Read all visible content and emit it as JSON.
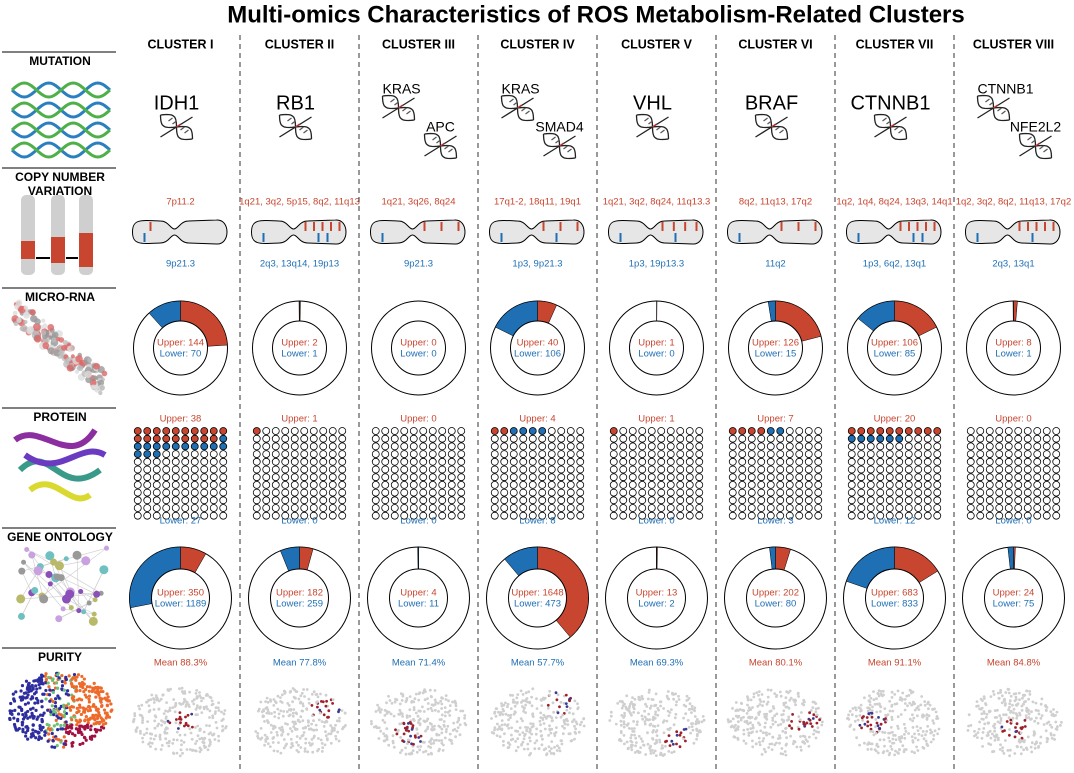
{
  "title": "Multi-omics Characteristics of ROS Metabolism-Related Clusters",
  "row_labels": [
    [
      "MUTATION"
    ],
    [
      "COPY NUMBER",
      "VARIATION"
    ],
    [
      "MICRO-RNA"
    ],
    [
      "PROTEIN"
    ],
    [
      "GENE ONTOLOGY"
    ],
    [
      "PURITY"
    ]
  ],
  "upper_color": "#c8452f",
  "lower_color": "#1f6fb5",
  "clusters": [
    {
      "name": "CLUSTER I",
      "mutation": [
        "IDH1"
      ],
      "cnv_upper": "7p11.2",
      "cnv_lower": "9p21.3",
      "mirna": {
        "values": [
          144,
          70
        ],
        "value_labels": [
          "Upper: 144",
          "Lower: 70"
        ]
      },
      "protein": {
        "values": [
          38,
          27
        ],
        "value_labels": [
          "Upper: 38",
          "Lower: 27"
        ]
      },
      "go": {
        "values": [
          350,
          1189
        ],
        "value_labels": [
          "Upper: 350",
          "Lower: 1189"
        ]
      },
      "purity": {
        "label": "Mean 88.3%",
        "color": "#c8452f"
      }
    },
    {
      "name": "CLUSTER II",
      "mutation": [
        "RB1"
      ],
      "cnv_upper": "1q21, 3q2, 5p15, 8q2, 11q13",
      "cnv_lower": "2q3, 13q14, 19p13",
      "mirna": {
        "values": [
          2,
          1
        ],
        "value_labels": [
          "Upper: 2",
          "Lower: 1"
        ]
      },
      "protein": {
        "values": [
          1,
          0
        ],
        "value_labels": [
          "Upper: 1",
          "Lower: 0"
        ]
      },
      "go": {
        "values": [
          182,
          259
        ],
        "value_labels": [
          "Upper: 182",
          "Lower: 259"
        ]
      },
      "purity": {
        "label": "Mean 77.8%",
        "color": "#1f6fb5"
      }
    },
    {
      "name": "CLUSTER III",
      "mutation": [
        "KRAS",
        "APC"
      ],
      "cnv_upper": "1q21, 3q26, 8q24",
      "cnv_lower": "9p21.3",
      "mirna": {
        "values": [
          0,
          0
        ],
        "value_labels": [
          "Upper: 0",
          "Lower: 0"
        ]
      },
      "protein": {
        "values": [
          0,
          0
        ],
        "value_labels": [
          "Upper: 0",
          "Lower: 0"
        ]
      },
      "go": {
        "values": [
          4,
          11
        ],
        "value_labels": [
          "Upper: 4",
          "Lower: 11"
        ]
      },
      "purity": {
        "label": "Mean 71.4%",
        "color": "#1f6fb5"
      }
    },
    {
      "name": "CLUSTER IV",
      "mutation": [
        "KRAS",
        "SMAD4"
      ],
      "cnv_upper": "17q1-2, 18q11, 19q1",
      "cnv_lower": "1p3, 9p21.3",
      "mirna": {
        "values": [
          40,
          106
        ],
        "value_labels": [
          "Upper: 40",
          "Lower: 106"
        ]
      },
      "protein": {
        "values": [
          4,
          8
        ],
        "value_labels": [
          "Upper: 4",
          "Lower: 8"
        ]
      },
      "go": {
        "values": [
          1648,
          473
        ],
        "value_labels": [
          "Upper: 1648",
          "Lower: 473"
        ]
      },
      "purity": {
        "label": "Mean 57.7%",
        "color": "#1f6fb5"
      }
    },
    {
      "name": "CLUSTER V",
      "mutation": [
        "VHL"
      ],
      "cnv_upper": "1q21, 3q2, 8q24, 11q13.3",
      "cnv_lower": "1p3, 19p13.3",
      "mirna": {
        "values": [
          1,
          0
        ],
        "value_labels": [
          "Upper: 1",
          "Lower: 0"
        ]
      },
      "protein": {
        "values": [
          1,
          0
        ],
        "value_labels": [
          "Upper: 1",
          "Lower: 0"
        ]
      },
      "go": {
        "values": [
          13,
          2
        ],
        "value_labels": [
          "Upper: 13",
          "Lower: 2"
        ]
      },
      "purity": {
        "label": "Mean 69.3%",
        "color": "#1f6fb5"
      }
    },
    {
      "name": "CLUSTER VI",
      "mutation": [
        "BRAF"
      ],
      "cnv_upper": "8q2, 11q13, 17q2",
      "cnv_lower": "11q2",
      "mirna": {
        "values": [
          126,
          15
        ],
        "value_labels": [
          "Upper: 126",
          "Lower: 15"
        ]
      },
      "protein": {
        "values": [
          7,
          3
        ],
        "value_labels": [
          "Upper: 7",
          "Lower: 3"
        ]
      },
      "go": {
        "values": [
          202,
          80
        ],
        "value_labels": [
          "Upper: 202",
          "Lower: 80"
        ]
      },
      "purity": {
        "label": "Mean 80.1%",
        "color": "#c8452f"
      }
    },
    {
      "name": "CLUSTER VII",
      "mutation": [
        "CTNNB1"
      ],
      "cnv_upper": "1q2, 1q4, 8q24, 13q3, 14q1",
      "cnv_lower": "1p3, 6q2, 13q1",
      "mirna": {
        "values": [
          106,
          85
        ],
        "value_labels": [
          "Upper: 106",
          "Lower: 85"
        ]
      },
      "protein": {
        "values": [
          20,
          12
        ],
        "value_labels": [
          "Upper: 20",
          "Lower: 12"
        ]
      },
      "go": {
        "values": [
          683,
          833
        ],
        "value_labels": [
          "Upper: 683",
          "Lower: 833"
        ]
      },
      "purity": {
        "label": "Mean 91.1%",
        "color": "#c8452f"
      }
    },
    {
      "name": "CLUSTER VIII",
      "mutation": [
        "CTNNB1",
        "NFE2L2"
      ],
      "cnv_upper": "1q2, 3q2, 8q2, 11q13, 17q2",
      "cnv_lower": "2q3, 13q1",
      "mirna": {
        "values": [
          8,
          1
        ],
        "value_labels": [
          "Upper: 8",
          "Lower: 1"
        ]
      },
      "protein": {
        "values": [
          0,
          0
        ],
        "value_labels": [
          "Upper: 0",
          "Lower: 0"
        ]
      },
      "go": {
        "values": [
          24,
          75
        ],
        "value_labels": [
          "Upper: 24",
          "Lower: 75"
        ]
      },
      "purity": {
        "label": "Mean 84.8%",
        "color": "#c8452f"
      }
    }
  ]
}
